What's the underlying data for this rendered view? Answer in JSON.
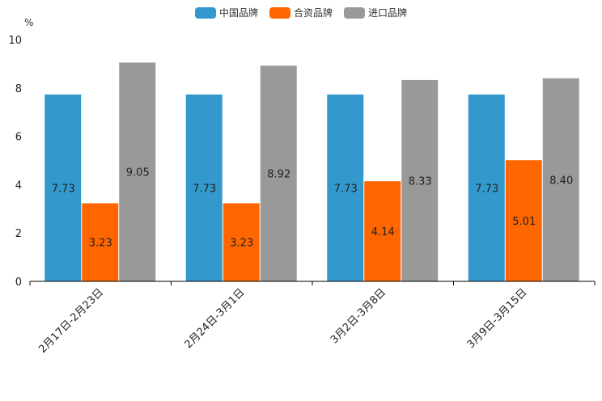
{
  "chart_data": {
    "type": "bar",
    "unit_label": "%",
    "categories": [
      "2月17日-2月23日",
      "2月24日-3月1日",
      "3月2日-3月8日",
      "3月9日-3月15日"
    ],
    "series": [
      {
        "name": "中国品牌",
        "color": "#3399cc",
        "values": [
          7.73,
          7.73,
          7.73,
          7.73
        ],
        "labels": [
          "7.73",
          "7.73",
          "7.73",
          "7.73"
        ]
      },
      {
        "name": "合资品牌",
        "color": "#ff6600",
        "values": [
          3.23,
          3.23,
          4.14,
          5.01
        ],
        "labels": [
          "3.23",
          "3.23",
          "4.14",
          "5.01"
        ]
      },
      {
        "name": "进口品牌",
        "color": "#999999",
        "values": [
          9.05,
          8.92,
          8.33,
          8.4
        ],
        "labels": [
          "9.05",
          "8.92",
          "8.33",
          "8.40"
        ]
      }
    ],
    "yticks": [
      "0",
      "2",
      "4",
      "6",
      "8",
      "10"
    ],
    "ylim": [
      0,
      10
    ],
    "legend_position": "top-center"
  }
}
